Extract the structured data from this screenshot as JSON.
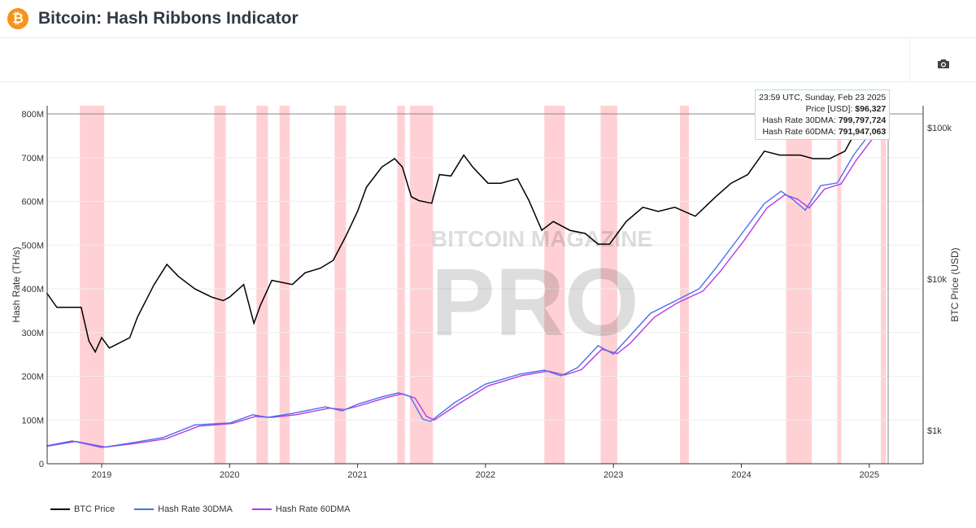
{
  "header": {
    "title": "Bitcoin: Hash Ribbons Indicator",
    "logo_glyph": "₿"
  },
  "toolbar": {
    "camera_icon": "camera-icon"
  },
  "tooltip": {
    "date": "23:59 UTC, Sunday, Feb 23 2025",
    "price_label": "Price [USD]:",
    "price_value": "$96,327",
    "hr30_label": "Hash Rate 30DMA:",
    "hr30_value": "799,797,724",
    "hr60_label": "Hash Rate 60DMA:",
    "hr60_value": "791,947,063"
  },
  "watermark": {
    "line1": "BITCOIN MAGAZINE",
    "line2": "PRO"
  },
  "chart_data": {
    "type": "line",
    "title": "Bitcoin: Hash Ribbons Indicator",
    "ylabel": "Hash Rate (TH/s)",
    "y2label": "BTC Price (USD)",
    "xlim": [
      2018.57,
      2025.42
    ],
    "ylim": [
      0,
      820000000
    ],
    "yticks": [
      {
        "v": 0,
        "l": "0"
      },
      {
        "v": 100,
        "l": "100M"
      },
      {
        "v": 200,
        "l": "200M"
      },
      {
        "v": 300,
        "l": "300M"
      },
      {
        "v": 400,
        "l": "400M"
      },
      {
        "v": 500,
        "l": "500M"
      },
      {
        "v": 600,
        "l": "600M"
      },
      {
        "v": 700,
        "l": "700M"
      },
      {
        "v": 800,
        "l": "800M"
      }
    ],
    "y2ticks": [
      {
        "v": 1000,
        "l": "$1k"
      },
      {
        "v": 10000,
        "l": "$10k"
      },
      {
        "v": 100000,
        "l": "$100k"
      }
    ],
    "xticks": [
      2019,
      2020,
      2021,
      2022,
      2023,
      2024,
      2025
    ],
    "colors": {
      "price": "#000000",
      "hr30": "#4a6ff0",
      "hr60": "#b43be0",
      "band": "#ffc9cc"
    },
    "legend": [
      {
        "name": "BTC Price",
        "key": "price"
      },
      {
        "name": "Hash Rate 30DMA",
        "key": "hr30"
      },
      {
        "name": "Hash Rate 60DMA",
        "key": "hr60"
      }
    ],
    "capitulation_bands": [
      [
        2018.83,
        2019.02
      ],
      [
        2019.88,
        2019.97
      ],
      [
        2020.21,
        2020.3
      ],
      [
        2020.39,
        2020.47
      ],
      [
        2020.82,
        2020.91
      ],
      [
        2021.31,
        2021.37
      ],
      [
        2021.41,
        2021.59
      ],
      [
        2022.46,
        2022.62
      ],
      [
        2022.9,
        2023.03
      ],
      [
        2023.52,
        2023.59
      ],
      [
        2024.35,
        2024.55
      ],
      [
        2024.75,
        2024.78
      ],
      [
        2025.09,
        2025.13
      ]
    ],
    "price": [
      [
        2018.57,
        8100
      ],
      [
        2018.65,
        6500
      ],
      [
        2018.84,
        6500
      ],
      [
        2018.9,
        3900
      ],
      [
        2018.95,
        3300
      ],
      [
        2019.0,
        4100
      ],
      [
        2019.06,
        3500
      ],
      [
        2019.22,
        4100
      ],
      [
        2019.28,
        5600
      ],
      [
        2019.41,
        9200
      ],
      [
        2019.51,
        12500
      ],
      [
        2019.6,
        10400
      ],
      [
        2019.73,
        8600
      ],
      [
        2019.86,
        7600
      ],
      [
        2019.95,
        7200
      ],
      [
        2020.0,
        7600
      ],
      [
        2020.11,
        9200
      ],
      [
        2020.19,
        5100
      ],
      [
        2020.24,
        6700
      ],
      [
        2020.33,
        9800
      ],
      [
        2020.49,
        9200
      ],
      [
        2020.59,
        11000
      ],
      [
        2020.71,
        11800
      ],
      [
        2020.81,
        13300
      ],
      [
        2020.91,
        19300
      ],
      [
        2021.0,
        28000
      ],
      [
        2021.07,
        40500
      ],
      [
        2021.19,
        55000
      ],
      [
        2021.29,
        62500
      ],
      [
        2021.35,
        55000
      ],
      [
        2021.42,
        35000
      ],
      [
        2021.48,
        33000
      ],
      [
        2021.58,
        31700
      ],
      [
        2021.64,
        49000
      ],
      [
        2021.73,
        48000
      ],
      [
        2021.83,
        66000
      ],
      [
        2021.9,
        55000
      ],
      [
        2022.02,
        43000
      ],
      [
        2022.12,
        43000
      ],
      [
        2022.25,
        46000
      ],
      [
        2022.34,
        33000
      ],
      [
        2022.44,
        21000
      ],
      [
        2022.53,
        24000
      ],
      [
        2022.66,
        21000
      ],
      [
        2022.78,
        20000
      ],
      [
        2022.88,
        17000
      ],
      [
        2022.97,
        17000
      ],
      [
        2023.1,
        24000
      ],
      [
        2023.23,
        29800
      ],
      [
        2023.35,
        28000
      ],
      [
        2023.48,
        29800
      ],
      [
        2023.64,
        26000
      ],
      [
        2023.8,
        35000
      ],
      [
        2023.92,
        43000
      ],
      [
        2024.05,
        49000
      ],
      [
        2024.18,
        70000
      ],
      [
        2024.3,
        66000
      ],
      [
        2024.46,
        66000
      ],
      [
        2024.56,
        62500
      ],
      [
        2024.69,
        62500
      ],
      [
        2024.81,
        70000
      ],
      [
        2024.88,
        90000
      ],
      [
        2024.94,
        102000
      ],
      [
        2025.04,
        96000
      ],
      [
        2025.15,
        96327
      ]
    ],
    "hr30": [
      [
        2018.57,
        41
      ],
      [
        2018.77,
        52
      ],
      [
        2019.0,
        37
      ],
      [
        2019.22,
        47
      ],
      [
        2019.48,
        60
      ],
      [
        2019.73,
        89
      ],
      [
        2020.0,
        93
      ],
      [
        2020.18,
        112
      ],
      [
        2020.3,
        106
      ],
      [
        2020.49,
        115
      ],
      [
        2020.75,
        130
      ],
      [
        2020.88,
        121
      ],
      [
        2021.0,
        136
      ],
      [
        2021.19,
        153
      ],
      [
        2021.32,
        162
      ],
      [
        2021.41,
        154
      ],
      [
        2021.51,
        102
      ],
      [
        2021.57,
        97
      ],
      [
        2021.76,
        140
      ],
      [
        2022.0,
        182
      ],
      [
        2022.27,
        205
      ],
      [
        2022.46,
        214
      ],
      [
        2022.59,
        201
      ],
      [
        2022.72,
        220
      ],
      [
        2022.88,
        270
      ],
      [
        2023.0,
        251
      ],
      [
        2023.1,
        283
      ],
      [
        2023.29,
        344
      ],
      [
        2023.48,
        372
      ],
      [
        2023.67,
        400
      ],
      [
        2023.8,
        447
      ],
      [
        2023.99,
        521
      ],
      [
        2024.18,
        595
      ],
      [
        2024.31,
        623
      ],
      [
        2024.4,
        605
      ],
      [
        2024.5,
        580
      ],
      [
        2024.62,
        636
      ],
      [
        2024.75,
        642
      ],
      [
        2024.88,
        707
      ],
      [
        2025.0,
        753
      ],
      [
        2025.15,
        800
      ]
    ],
    "hr60": [
      [
        2018.57,
        40
      ],
      [
        2018.8,
        51
      ],
      [
        2019.03,
        38
      ],
      [
        2019.25,
        46
      ],
      [
        2019.5,
        57
      ],
      [
        2019.76,
        86
      ],
      [
        2020.02,
        92
      ],
      [
        2020.2,
        108
      ],
      [
        2020.33,
        106
      ],
      [
        2020.52,
        112
      ],
      [
        2020.78,
        127
      ],
      [
        2020.9,
        124
      ],
      [
        2021.02,
        133
      ],
      [
        2021.21,
        150
      ],
      [
        2021.35,
        160
      ],
      [
        2021.45,
        150
      ],
      [
        2021.54,
        108
      ],
      [
        2021.6,
        100
      ],
      [
        2021.78,
        135
      ],
      [
        2022.02,
        178
      ],
      [
        2022.29,
        202
      ],
      [
        2022.49,
        212
      ],
      [
        2022.62,
        203
      ],
      [
        2022.75,
        215
      ],
      [
        2022.91,
        262
      ],
      [
        2023.03,
        252
      ],
      [
        2023.13,
        275
      ],
      [
        2023.32,
        335
      ],
      [
        2023.5,
        368
      ],
      [
        2023.7,
        395
      ],
      [
        2023.83,
        438
      ],
      [
        2024.02,
        510
      ],
      [
        2024.2,
        585
      ],
      [
        2024.34,
        615
      ],
      [
        2024.44,
        605
      ],
      [
        2024.53,
        585
      ],
      [
        2024.65,
        628
      ],
      [
        2024.78,
        640
      ],
      [
        2024.9,
        695
      ],
      [
        2025.03,
        745
      ],
      [
        2025.15,
        792
      ]
    ]
  }
}
